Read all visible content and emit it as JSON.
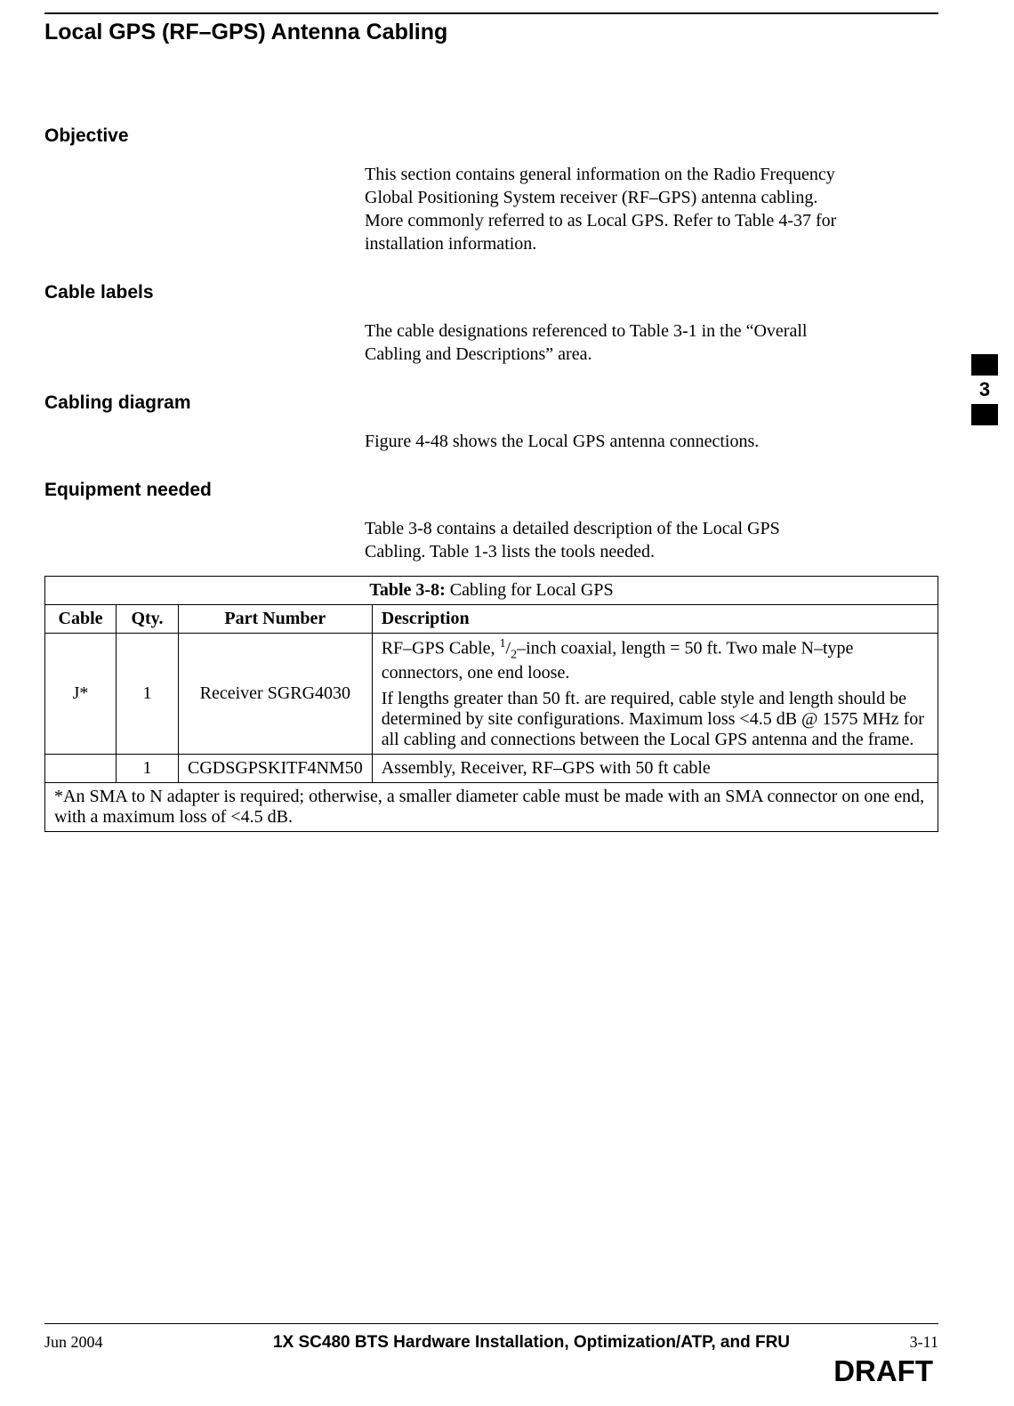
{
  "page": {
    "title": "Local GPS (RF–GPS) Antenna Cabling",
    "side_tab": "3"
  },
  "sections": {
    "objective": {
      "heading": "Objective",
      "body": "This section contains general information on the Radio Frequency Global Positioning System receiver (RF–GPS) antenna cabling. More commonly referred to as Local GPS. Refer to Table 4-37 for installation information."
    },
    "cable_labels": {
      "heading": "Cable labels",
      "body": "The cable designations referenced to Table 3-1 in the “Overall Cabling and Descriptions” area."
    },
    "cabling_diagram": {
      "heading": "Cabling diagram",
      "body": "Figure 4-48 shows the Local GPS antenna  connections."
    },
    "equipment": {
      "heading": "Equipment needed",
      "body": "Table 3-8 contains a detailed description of the Local GPS Cabling. Table 1-3 lists the tools needed."
    }
  },
  "table": {
    "caption_prefix": "Table 3-8:",
    "caption_rest": " Cabling for Local GPS",
    "columns": {
      "cable": "Cable",
      "qty": "Qty.",
      "part": "Part Number",
      "desc": "Description"
    },
    "rows": {
      "r1": {
        "cable": "J*",
        "qty": "1",
        "part": "Receiver SGRG4030",
        "desc_p1_a": "RF–GPS Cable, ",
        "desc_p1_sup": "1",
        "desc_p1_slash": "/",
        "desc_p1_sub": "2",
        "desc_p1_b": "–inch coaxial, length = 50 ft. Two male N–type connectors, one end loose.",
        "desc_p2": "If lengths greater than 50 ft. are required, cable style and length should be determined by site configurations. Maximum loss <4.5 dB @ 1575 MHz for all cabling and connections between the Local GPS antenna and the frame."
      },
      "r2": {
        "cable": "",
        "qty": "1",
        "part": "CGDSGPSKITF4NM50",
        "desc": "Assembly, Receiver, RF–GPS with 50 ft cable"
      }
    },
    "footnote": "*An SMA to N adapter is required; otherwise, a smaller diameter cable must be made with an SMA connector on one end, with a maximum loss of <4.5 dB."
  },
  "footer": {
    "date": "Jun 2004",
    "title": "1X SC480 BTS Hardware Installation, Optimization/ATP, and FRU",
    "page_number": "3-11",
    "draft": "DRAFT"
  }
}
